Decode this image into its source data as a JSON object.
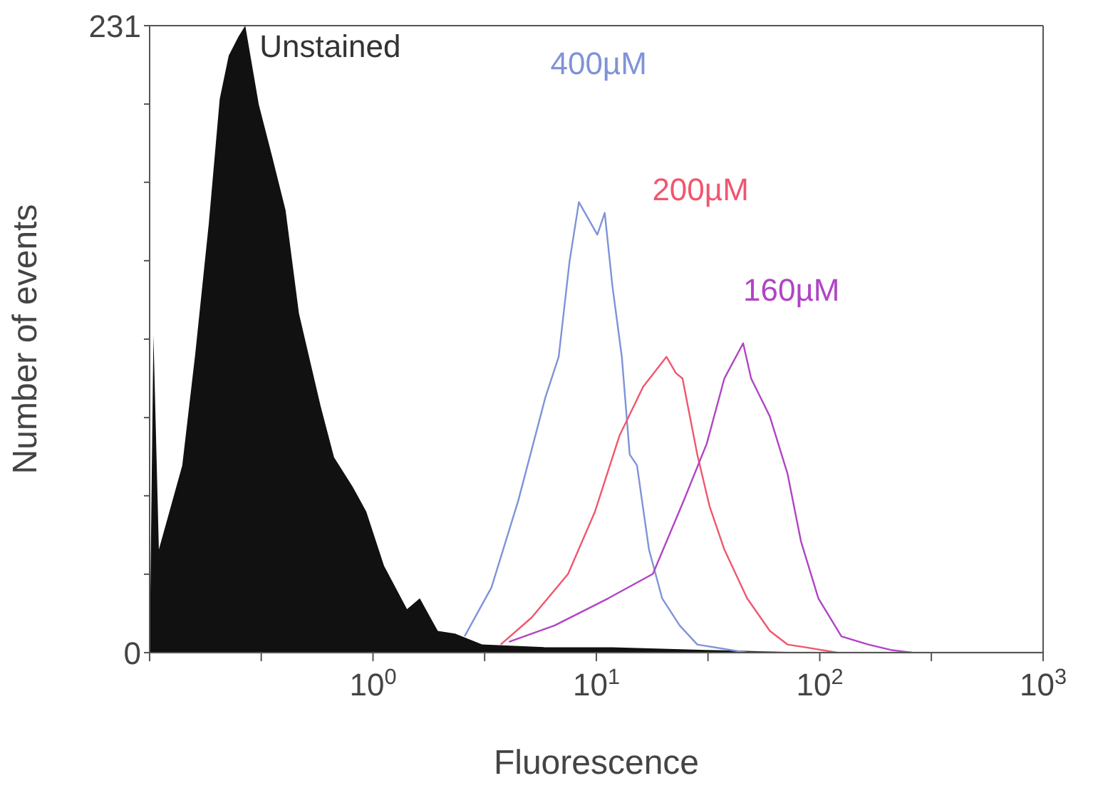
{
  "chart_data": {
    "type": "line",
    "xlabel": "Fluorescence",
    "ylabel": "Number of events",
    "log": "x",
    "xlim": [
      0.1,
      1000
    ],
    "xticks": [
      {
        "value": 0.1,
        "label": null
      },
      {
        "value": 0.316,
        "label": null
      },
      {
        "value": 1,
        "label": "10$^{0}$"
      },
      {
        "value": 3.16,
        "label": null
      },
      {
        "value": 10,
        "label": "10$^{1}$"
      },
      {
        "value": 31.6,
        "label": null
      },
      {
        "value": 100,
        "label": "10$^{2}$"
      },
      {
        "value": 316,
        "label": null
      },
      {
        "value": 1000,
        "label": "10$^{3}$"
      }
    ],
    "ylim": [
      0,
      231
    ],
    "yticks": [
      0,
      {
        "value": 28.9,
        "label": null
      },
      {
        "value": 57.8,
        "label": null
      },
      {
        "value": 86.6,
        "label": null
      },
      {
        "value": 115.5,
        "label": null
      },
      {
        "value": 144.4,
        "label": null
      },
      {
        "value": 173.3,
        "label": null
      },
      {
        "value": 202.1,
        "label": null
      },
      231
    ],
    "marker": "none",
    "line_style": "solid",
    "series": [
      {
        "name": "Unstained",
        "type": "area",
        "color": "#111111",
        "x": [
          0.1,
          0.104,
          0.11,
          0.14,
          0.16,
          0.184,
          0.206,
          0.226,
          0.25,
          0.268,
          0.308,
          0.353,
          0.406,
          0.466,
          0.582,
          0.669,
          0.812,
          0.933,
          1.12,
          1.42,
          1.62,
          1.95,
          2.33,
          3.08,
          5.9,
          11.8,
          31,
          95
        ],
        "values": [
          0,
          117,
          38,
          69,
          110,
          158,
          204,
          220,
          227,
          231,
          202,
          183,
          163,
          125,
          91,
          72,
          61,
          52,
          32,
          16,
          20,
          8,
          7,
          3,
          2,
          2,
          1,
          0
        ]
      },
      {
        "name": "400µM",
        "color": "#7f93d8",
        "x": [
          2.57,
          3.39,
          4.47,
          5.91,
          6.78,
          7.58,
          8.35,
          10.1,
          10.9,
          11.8,
          13.0,
          14.1,
          15.2,
          17.2,
          19.7,
          23.6,
          28.3,
          47.3,
          1000
        ],
        "values": [
          6,
          24,
          56,
          94,
          109,
          144,
          166,
          154,
          162,
          135,
          109,
          73,
          69,
          38,
          20,
          10,
          3,
          0,
          0
        ]
      },
      {
        "name": "200µM",
        "color": "#f0566e",
        "x": [
          3.73,
          5.14,
          7.47,
          9.86,
          12.7,
          16.2,
          20.6,
          22.7,
          24.3,
          28.3,
          32.1,
          37.4,
          47.3,
          59.8,
          71.7,
          85.9,
          120
        ],
        "values": [
          3,
          13,
          29,
          52,
          80,
          98,
          109,
          103,
          101,
          73,
          54,
          38,
          20,
          8,
          3,
          2,
          0
        ]
      },
      {
        "name": "160µM",
        "color": "#b044c4",
        "x": [
          4.06,
          6.5,
          11.3,
          17.9,
          24.6,
          31.2,
          37.4,
          45.4,
          49.3,
          59.8,
          71.7,
          82.4,
          98.6,
          125,
          165,
          208,
          260
        ],
        "values": [
          4,
          10,
          20,
          29,
          56,
          77,
          101,
          114,
          101,
          87,
          66,
          41,
          20,
          6,
          3,
          1,
          0
        ]
      }
    ]
  }
}
